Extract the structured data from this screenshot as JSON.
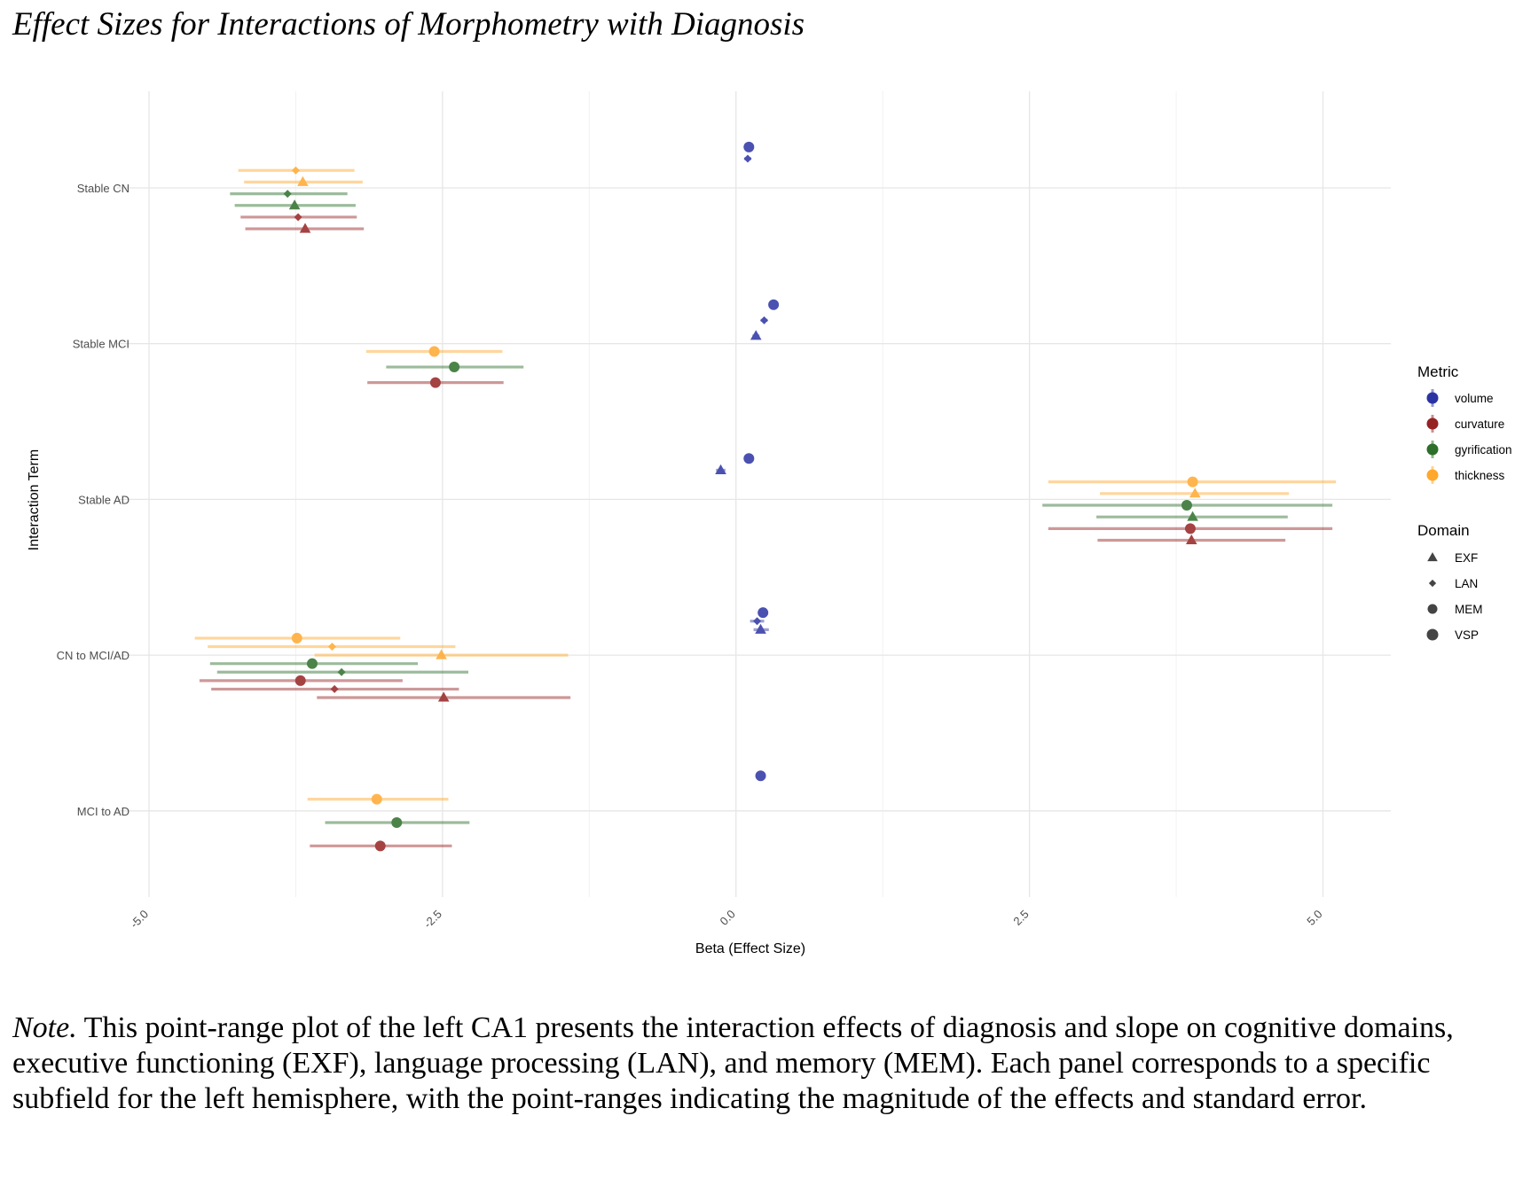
{
  "title": "Effect Sizes for Interactions of Morphometry with Diagnosis",
  "note": {
    "label": "Note.",
    "text": " This point-range plot of the left CA1 presents the interaction effects of diagnosis and slope on cognitive domains, executive functioning (EXF), language processing (LAN), and memory (MEM). Each panel corresponds to a specific subfield for the left hemisphere, with the point-ranges indicating the magnitude of the effects and standard error."
  },
  "chart_data": {
    "type": "scatter",
    "subtype": "pointrange",
    "xlabel": "Beta (Effect Size)",
    "ylabel": "Interaction Term",
    "xlim": [
      -5.5,
      5.5
    ],
    "x_ticks": [
      -5.0,
      -2.5,
      0.0,
      2.5,
      5.0
    ],
    "x_tick_labels": [
      "-5.0",
      "-2.5",
      "0.0",
      "2.5",
      "5.0"
    ],
    "categories": [
      "Stable CN",
      "Stable MCI",
      "Stable AD",
      "CN to MCI/AD",
      "MCI to AD"
    ],
    "grid": true,
    "legend_position": "right",
    "metric_legend": {
      "title": "Metric",
      "items": [
        {
          "name": "volume",
          "color": "#2b33a3"
        },
        {
          "name": "curvature",
          "color": "#962222"
        },
        {
          "name": "gyrification",
          "color": "#2c6e2a"
        },
        {
          "name": "thickness",
          "color": "#ffa82e"
        }
      ]
    },
    "domain_legend": {
      "title": "Domain",
      "items": [
        {
          "name": "EXF",
          "shape": "triangle"
        },
        {
          "name": "LAN",
          "shape": "diamond"
        },
        {
          "name": "MEM",
          "shape": "circle"
        },
        {
          "name": "VSP",
          "shape": "circle"
        }
      ]
    },
    "points": [
      {
        "category": "Stable CN",
        "points": [
          {
            "metric": "volume",
            "domain": "MEM",
            "beta": 0.11,
            "lo": 0.08,
            "hi": 0.14
          },
          {
            "metric": "volume",
            "domain": "LAN",
            "beta": 0.1,
            "lo": 0.07,
            "hi": 0.13
          },
          {
            "metric": "thickness",
            "domain": "LAN",
            "beta": -3.75,
            "lo": -4.24,
            "hi": -3.25
          },
          {
            "metric": "thickness",
            "domain": "EXF",
            "beta": -3.69,
            "lo": -4.19,
            "hi": -3.18
          },
          {
            "metric": "gyrification",
            "domain": "LAN",
            "beta": -3.82,
            "lo": -4.31,
            "hi": -3.31
          },
          {
            "metric": "gyrification",
            "domain": "EXF",
            "beta": -3.76,
            "lo": -4.27,
            "hi": -3.24
          },
          {
            "metric": "curvature",
            "domain": "LAN",
            "beta": -3.73,
            "lo": -4.22,
            "hi": -3.23
          },
          {
            "metric": "curvature",
            "domain": "EXF",
            "beta": -3.67,
            "lo": -4.18,
            "hi": -3.17
          }
        ]
      },
      {
        "category": "Stable MCI",
        "points": [
          {
            "metric": "volume",
            "domain": "MEM",
            "beta": 0.32,
            "lo": 0.29,
            "hi": 0.35
          },
          {
            "metric": "volume",
            "domain": "LAN",
            "beta": 0.24,
            "lo": 0.21,
            "hi": 0.27
          },
          {
            "metric": "volume",
            "domain": "EXF",
            "beta": 0.17,
            "lo": 0.14,
            "hi": 0.2
          },
          {
            "metric": "thickness",
            "domain": "MEM",
            "beta": -2.57,
            "lo": -3.15,
            "hi": -1.99
          },
          {
            "metric": "gyrification",
            "domain": "MEM",
            "beta": -2.4,
            "lo": -2.98,
            "hi": -1.81
          },
          {
            "metric": "curvature",
            "domain": "MEM",
            "beta": -2.56,
            "lo": -3.14,
            "hi": -1.98
          }
        ]
      },
      {
        "category": "Stable AD",
        "points": [
          {
            "metric": "volume",
            "domain": "MEM",
            "beta": 0.11,
            "lo": 0.08,
            "hi": 0.14
          },
          {
            "metric": "volume",
            "domain": "EXF",
            "beta": -0.13,
            "lo": -0.17,
            "hi": -0.09
          },
          {
            "metric": "thickness",
            "domain": "MEM",
            "beta": 3.89,
            "lo": 2.66,
            "hi": 5.11
          },
          {
            "metric": "thickness",
            "domain": "EXF",
            "beta": 3.91,
            "lo": 3.1,
            "hi": 4.71
          },
          {
            "metric": "gyrification",
            "domain": "MEM",
            "beta": 3.84,
            "lo": 2.61,
            "hi": 5.08
          },
          {
            "metric": "gyrification",
            "domain": "EXF",
            "beta": 3.89,
            "lo": 3.07,
            "hi": 4.7
          },
          {
            "metric": "curvature",
            "domain": "MEM",
            "beta": 3.87,
            "lo": 2.66,
            "hi": 5.08
          },
          {
            "metric": "curvature",
            "domain": "EXF",
            "beta": 3.88,
            "lo": 3.08,
            "hi": 4.68
          }
        ]
      },
      {
        "category": "CN to MCI/AD",
        "points": [
          {
            "metric": "volume",
            "domain": "MEM",
            "beta": 0.23,
            "lo": 0.2,
            "hi": 0.26
          },
          {
            "metric": "volume",
            "domain": "LAN",
            "beta": 0.18,
            "lo": 0.12,
            "hi": 0.24
          },
          {
            "metric": "volume",
            "domain": "EXF",
            "beta": 0.21,
            "lo": 0.15,
            "hi": 0.28
          },
          {
            "metric": "thickness",
            "domain": "MEM",
            "beta": -3.74,
            "lo": -4.61,
            "hi": -2.86
          },
          {
            "metric": "thickness",
            "domain": "LAN",
            "beta": -3.44,
            "lo": -4.5,
            "hi": -2.39
          },
          {
            "metric": "thickness",
            "domain": "EXF",
            "beta": -2.51,
            "lo": -3.59,
            "hi": -1.43
          },
          {
            "metric": "gyrification",
            "domain": "MEM",
            "beta": -3.61,
            "lo": -4.48,
            "hi": -2.71
          },
          {
            "metric": "gyrification",
            "domain": "LAN",
            "beta": -3.36,
            "lo": -4.42,
            "hi": -2.28
          },
          {
            "metric": "curvature",
            "domain": "MEM",
            "beta": -3.71,
            "lo": -4.57,
            "hi": -2.84
          },
          {
            "metric": "curvature",
            "domain": "LAN",
            "beta": -3.42,
            "lo": -4.47,
            "hi": -2.36
          },
          {
            "metric": "curvature",
            "domain": "EXF",
            "beta": -2.49,
            "lo": -3.57,
            "hi": -1.41
          }
        ]
      },
      {
        "category": "MCI to AD",
        "points": [
          {
            "metric": "volume",
            "domain": "MEM",
            "beta": 0.21,
            "lo": 0.18,
            "hi": 0.24
          },
          {
            "metric": "thickness",
            "domain": "MEM",
            "beta": -3.06,
            "lo": -3.65,
            "hi": -2.45
          },
          {
            "metric": "gyrification",
            "domain": "MEM",
            "beta": -2.89,
            "lo": -3.5,
            "hi": -2.27
          },
          {
            "metric": "curvature",
            "domain": "MEM",
            "beta": -3.03,
            "lo": -3.63,
            "hi": -2.42
          }
        ]
      }
    ]
  }
}
